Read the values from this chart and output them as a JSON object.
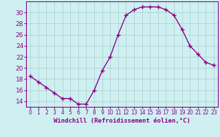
{
  "hours": [
    0,
    1,
    2,
    3,
    4,
    5,
    6,
    7,
    8,
    9,
    10,
    11,
    12,
    13,
    14,
    15,
    16,
    17,
    18,
    19,
    20,
    21,
    22,
    23
  ],
  "values": [
    18.5,
    17.5,
    16.5,
    15.5,
    14.5,
    14.5,
    13.5,
    13.5,
    16.0,
    19.5,
    22.0,
    26.0,
    29.5,
    30.5,
    31.0,
    31.0,
    31.0,
    30.5,
    29.5,
    27.0,
    24.0,
    22.5,
    21.0,
    20.5
  ],
  "line_color": "#880088",
  "marker": "+",
  "marker_size": 4,
  "marker_lw": 1.0,
  "line_width": 1.0,
  "bg_color": "#cff0f0",
  "grid_color": "#aacccc",
  "xlabel": "Windchill (Refroidissement éolien,°C)",
  "ylabel": "",
  "yticks": [
    14,
    16,
    18,
    20,
    22,
    24,
    26,
    28,
    30
  ],
  "ylim": [
    13.0,
    32.0
  ],
  "xlim": [
    -0.5,
    23.5
  ],
  "xtick_labels": [
    "0",
    "1",
    "2",
    "3",
    "4",
    "5",
    "6",
    "7",
    "8",
    "9",
    "10",
    "11",
    "12",
    "13",
    "14",
    "15",
    "16",
    "17",
    "18",
    "19",
    "20",
    "21",
    "22",
    "23"
  ],
  "tick_color": "#880088",
  "label_color": "#880088",
  "spine_color": "#880088",
  "xlabel_fontsize": 6.5,
  "ytick_fontsize": 6.5,
  "xtick_fontsize": 5.5
}
